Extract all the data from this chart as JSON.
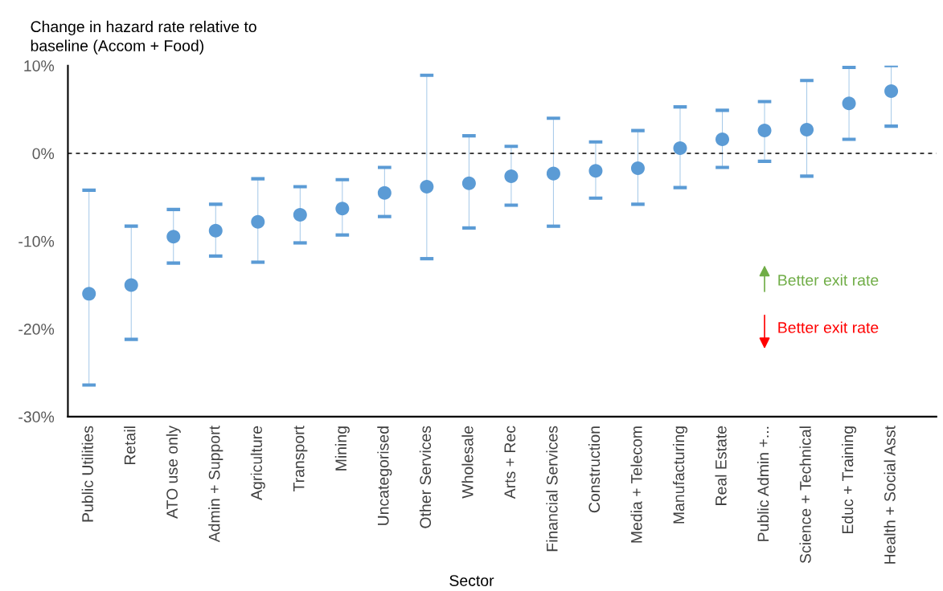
{
  "chart_data": {
    "type": "scatter",
    "ylabel": "Change in hazard rate relative to\nbaseline (Accom + Food)",
    "xlabel": "Sector",
    "categories": [
      "Public Utilities",
      "Retail",
      "ATO use only",
      "Admin + Support",
      "Agriculture",
      "Transport",
      "Mining",
      "Uncategorised",
      "Other Services",
      "Wholesale",
      "Arts + Rec",
      "Financial Services",
      "Construction",
      "Media + Telecom",
      "Manufacturing",
      "Real Estate",
      "Public Admin +...",
      "Science + Technical",
      "Educ + Training",
      "Health + Social Asst"
    ],
    "series": [
      {
        "color": "#5b9bd5",
        "values": [
          -16.0,
          -15.0,
          -9.5,
          -8.8,
          -7.8,
          -7.0,
          -6.3,
          -4.5,
          -3.8,
          -3.4,
          -2.6,
          -2.3,
          -2.0,
          -1.7,
          0.6,
          1.6,
          2.6,
          2.7,
          5.7,
          7.1
        ],
        "errors": [
          [
            -26.4,
            -4.2
          ],
          [
            -21.2,
            -8.3
          ],
          [
            -12.5,
            -6.4
          ],
          [
            -11.7,
            -5.8
          ],
          [
            -12.4,
            -2.9
          ],
          [
            -10.2,
            -3.8
          ],
          [
            -9.3,
            -3.0
          ],
          [
            -7.2,
            -1.6
          ],
          [
            -12.0,
            8.9
          ],
          [
            -8.5,
            2.0
          ],
          [
            -5.9,
            0.8
          ],
          [
            -8.3,
            4.0
          ],
          [
            -5.1,
            1.3
          ],
          [
            -5.8,
            2.6
          ],
          [
            -3.9,
            5.3
          ],
          [
            -1.6,
            4.9
          ],
          [
            -0.9,
            5.9
          ],
          [
            -2.6,
            8.3
          ],
          [
            1.6,
            9.8
          ],
          [
            3.1,
            10.0
          ]
        ]
      }
    ],
    "ylim": [
      -30,
      10
    ],
    "yticks": [
      {
        "value": -30,
        "label": "-30%"
      },
      {
        "value": -20,
        "label": "-20%"
      },
      {
        "value": -10,
        "label": "-10%"
      },
      {
        "value": 0,
        "label": "0%"
      },
      {
        "value": 10,
        "label": "10%"
      }
    ],
    "ref_lines": [
      {
        "axis": "y",
        "value": 0,
        "color": "#000000",
        "line_style": "dashed"
      }
    ],
    "annotations": [
      "Better exit rate",
      "Better exit rate"
    ],
    "marker": "circle",
    "grid": false,
    "legend": false
  }
}
